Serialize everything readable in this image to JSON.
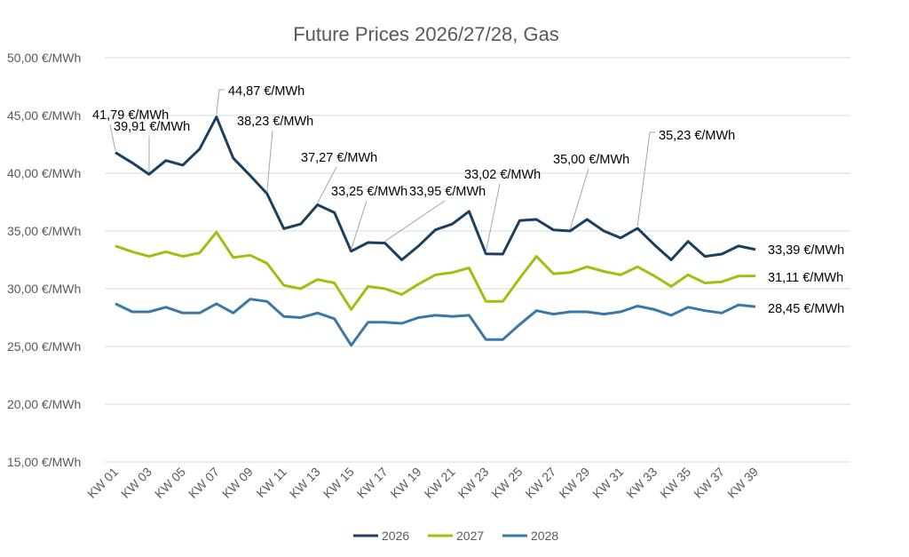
{
  "chart_data": {
    "type": "line",
    "title": "Future Prices 2026/27/28, Gas",
    "xlabel": "",
    "ylabel": "",
    "ylim": [
      15,
      50
    ],
    "y_ticks": [
      50,
      45,
      40,
      35,
      30,
      25,
      20,
      15
    ],
    "y_tick_labels": [
      "50,00 €/MWh",
      "45,00 €/MWh",
      "40,00 €/MWh",
      "35,00 €/MWh",
      "30,00 €/MWh",
      "25,00 €/MWh",
      "20,00 €/MWh",
      "15,00 €/MWh"
    ],
    "x": [
      "KW 01",
      "KW 02",
      "KW 03",
      "KW 04",
      "KW 05",
      "KW 06",
      "KW 07",
      "KW 08",
      "KW 09",
      "KW 10",
      "KW 11",
      "KW 12",
      "KW 13",
      "KW 14",
      "KW 15",
      "KW 16",
      "KW 17",
      "KW 18",
      "KW 19",
      "KW 20",
      "KW 21",
      "KW 22",
      "KW 23",
      "KW 24",
      "KW 25",
      "KW 26",
      "KW 27",
      "KW 28",
      "KW 29",
      "KW 30",
      "KW 31",
      "KW 32",
      "KW 33",
      "KW 34",
      "KW 35",
      "KW 36",
      "KW 37",
      "KW 38",
      "KW 39"
    ],
    "x_tick_labels": [
      "KW 01",
      "KW 03",
      "KW 05",
      "KW 07",
      "KW 09",
      "KW 11",
      "KW 13",
      "KW 15",
      "KW 17",
      "KW 19",
      "KW 21",
      "KW 23",
      "KW 25",
      "KW 27",
      "KW 29",
      "KW 31",
      "KW 33",
      "KW 35",
      "KW 37",
      "KW 39"
    ],
    "grid": true,
    "legend_position": "bottom",
    "series": [
      {
        "name": "2026",
        "color": "#1b3f5e",
        "values": [
          41.79,
          40.9,
          39.91,
          41.1,
          40.7,
          42.1,
          44.87,
          41.3,
          39.8,
          38.23,
          35.2,
          35.6,
          37.27,
          36.6,
          33.25,
          34.0,
          33.95,
          32.5,
          33.7,
          35.1,
          35.6,
          36.7,
          33.02,
          33.0,
          35.9,
          36.0,
          35.1,
          35.0,
          36.0,
          35.0,
          34.4,
          35.23,
          33.8,
          32.5,
          34.1,
          32.8,
          33.0,
          33.7,
          33.39
        ]
      },
      {
        "name": "2027",
        "color": "#9bc20f",
        "values": [
          33.7,
          33.2,
          32.8,
          33.2,
          32.8,
          33.1,
          34.9,
          32.7,
          32.9,
          32.2,
          30.3,
          30.0,
          30.8,
          30.5,
          28.2,
          30.2,
          30.0,
          29.5,
          30.4,
          31.2,
          31.4,
          31.8,
          28.9,
          28.9,
          30.9,
          32.8,
          31.3,
          31.4,
          31.9,
          31.5,
          31.2,
          31.9,
          31.1,
          30.2,
          31.2,
          30.5,
          30.6,
          31.1,
          31.11
        ]
      },
      {
        "name": "2028",
        "color": "#3a78a8",
        "values": [
          28.7,
          28.0,
          28.0,
          28.4,
          27.9,
          27.9,
          28.7,
          27.9,
          29.1,
          28.9,
          27.6,
          27.5,
          27.9,
          27.4,
          25.1,
          27.1,
          27.1,
          27.0,
          27.5,
          27.7,
          27.6,
          27.7,
          25.6,
          25.6,
          26.9,
          28.1,
          27.8,
          28.0,
          28.0,
          27.8,
          28.0,
          28.5,
          28.2,
          27.7,
          28.4,
          28.1,
          27.9,
          28.6,
          28.45
        ]
      }
    ],
    "annotations": [
      {
        "series": "2026",
        "x": "KW 01",
        "text": "41,79 €/MWh"
      },
      {
        "series": "2026",
        "x": "KW 03",
        "text": "39,91 €/MWh"
      },
      {
        "series": "2026",
        "x": "KW 07",
        "text": "44,87 €/MWh"
      },
      {
        "series": "2026",
        "x": "KW 10",
        "text": "38,23 €/MWh"
      },
      {
        "series": "2026",
        "x": "KW 13",
        "text": "37,27 €/MWh"
      },
      {
        "series": "2026",
        "x": "KW 15",
        "text": "33,25 €/MWh"
      },
      {
        "series": "2026",
        "x": "KW 17",
        "text": "33,95 €/MWh"
      },
      {
        "series": "2026",
        "x": "KW 23",
        "text": "33,02 €/MWh"
      },
      {
        "series": "2026",
        "x": "KW 28",
        "text": "35,00 €/MWh"
      },
      {
        "series": "2026",
        "x": "KW 32",
        "text": "35,23 €/MWh"
      },
      {
        "series": "2026",
        "x": "KW 39",
        "text": "33,39 €/MWh"
      },
      {
        "series": "2027",
        "x": "KW 39",
        "text": "31,11 €/MWh"
      },
      {
        "series": "2028",
        "x": "KW 39",
        "text": "28,45 €/MWh"
      }
    ]
  }
}
